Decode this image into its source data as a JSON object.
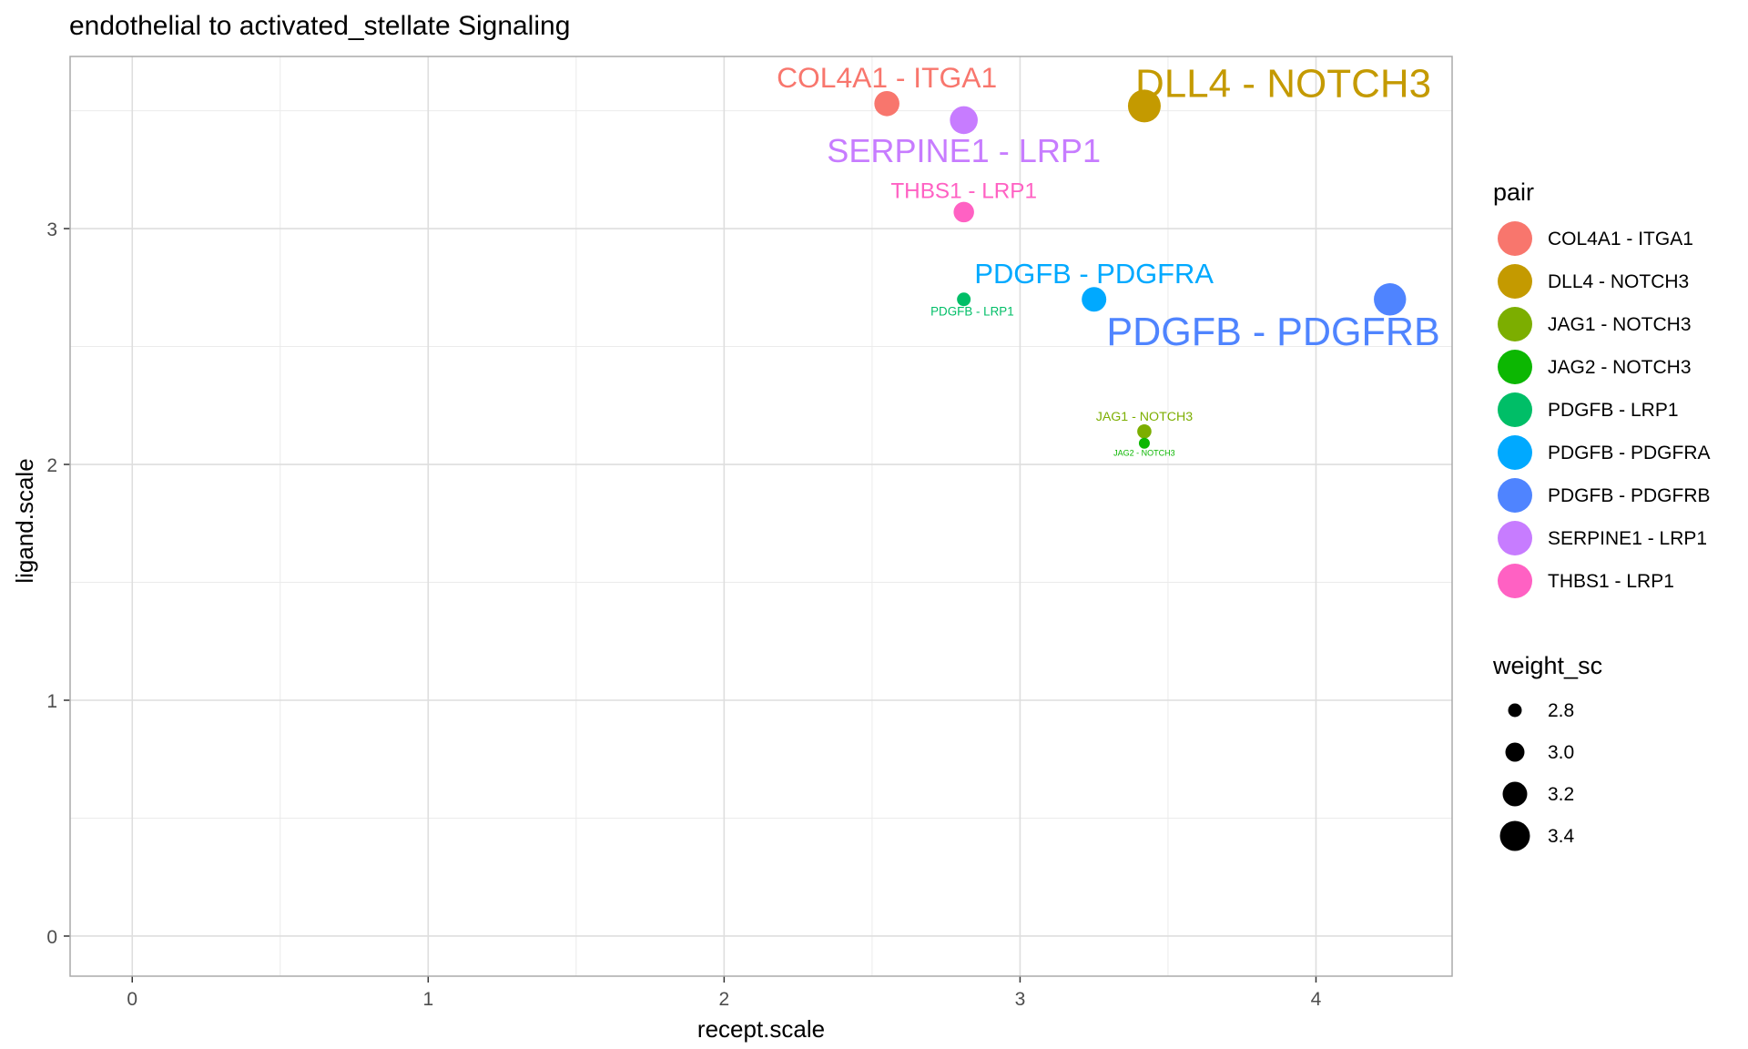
{
  "chart_data": {
    "type": "scatter",
    "title": "endothelial to activated_stellate Signaling",
    "xlabel": "recept.scale",
    "ylabel": "ligand.scale",
    "xlim": [
      -0.21,
      4.46
    ],
    "ylim": [
      -0.17,
      3.73
    ],
    "xticks": [
      0,
      1,
      2,
      3,
      4
    ],
    "yticks": [
      0,
      1,
      2,
      3
    ],
    "grid": true,
    "legend_position": "right",
    "color_legend_title": "pair",
    "size_legend_title": "weight_sc",
    "size_legend": [
      2.8,
      3.0,
      3.2,
      3.4
    ],
    "series": [
      {
        "name": "COL4A1 - ITGA1",
        "x": 2.55,
        "y": 3.53,
        "weight_sc": 3.22,
        "color": "#F8766D",
        "label_pos": "above"
      },
      {
        "name": "DLL4 - NOTCH3",
        "x": 3.42,
        "y": 3.52,
        "weight_sc": 3.5,
        "color": "#C49A00",
        "label_pos": "above-right"
      },
      {
        "name": "JAG1 - NOTCH3",
        "x": 3.42,
        "y": 2.14,
        "weight_sc": 2.82,
        "color": "#7CAE00",
        "label_pos": "above"
      },
      {
        "name": "JAG2 - NOTCH3",
        "x": 3.42,
        "y": 2.09,
        "weight_sc": 2.7,
        "color": "#0CB702",
        "label_pos": "below"
      },
      {
        "name": "PDGFB - LRP1",
        "x": 2.81,
        "y": 2.7,
        "weight_sc": 2.8,
        "color": "#00BE67",
        "label_pos": "below-left"
      },
      {
        "name": "PDGFB - PDGFRA",
        "x": 3.25,
        "y": 2.7,
        "weight_sc": 3.2,
        "color": "#00A9FF",
        "label_pos": "above"
      },
      {
        "name": "PDGFB - PDGFRB",
        "x": 4.25,
        "y": 2.7,
        "weight_sc": 3.48,
        "color": "#4F84FF",
        "label_pos": "below-left"
      },
      {
        "name": "SERPINE1 - LRP1",
        "x": 2.81,
        "y": 3.46,
        "weight_sc": 3.32,
        "color": "#C77CFF",
        "label_pos": "below"
      },
      {
        "name": "THBS1 - LRP1",
        "x": 2.81,
        "y": 3.07,
        "weight_sc": 3.05,
        "color": "#FF61C3",
        "label_pos": "above"
      }
    ]
  }
}
